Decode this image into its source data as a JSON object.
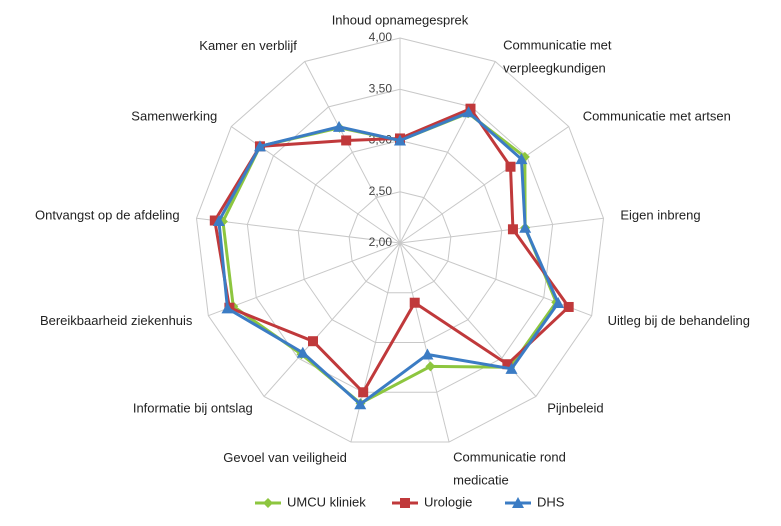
{
  "chart_data": {
    "type": "radar",
    "categories": [
      "Inhoud opnamegesprek",
      "Communicatie met verpleegkundigen",
      "Communicatie met artsen",
      "Eigen inbreng",
      "Uitleg bij de behandeling",
      "Pijnbeleid",
      "Communicatie rond medicatie",
      "Gevoel van veiligheid",
      "Informatie bij ontslag",
      "Bereikbaarheid ziekenhuis",
      "Ontvangst op de afdeling",
      "Samenwerking",
      "Kamer en verblijf"
    ],
    "series": [
      {
        "name": "UMCU kliniek",
        "color": "#8dc63f",
        "marker": "diamond",
        "values": [
          3.0,
          3.43,
          3.48,
          3.23,
          3.63,
          3.62,
          3.24,
          3.61,
          3.45,
          3.74,
          3.74,
          3.66,
          3.27
        ]
      },
      {
        "name": "Urologie",
        "color": "#c0393b",
        "marker": "square",
        "values": [
          3.02,
          3.48,
          3.31,
          3.11,
          3.76,
          3.58,
          2.6,
          3.5,
          3.28,
          3.78,
          3.82,
          3.66,
          3.13
        ]
      },
      {
        "name": "DHS",
        "color": "#3b7cc4",
        "marker": "triangle",
        "values": [
          3.0,
          3.44,
          3.44,
          3.23,
          3.65,
          3.64,
          3.12,
          3.62,
          3.43,
          3.8,
          3.78,
          3.66,
          3.28
        ]
      }
    ],
    "ylim": [
      2,
      4
    ],
    "yticks": [
      {
        "value": 2,
        "label": "2,00"
      },
      {
        "value": 2.5,
        "label": "2,50"
      },
      {
        "value": 3,
        "label": "3,00"
      },
      {
        "value": 3.5,
        "label": "3,50"
      },
      {
        "value": 4,
        "label": "4,00"
      }
    ],
    "grid": true,
    "legend": "bottom"
  }
}
